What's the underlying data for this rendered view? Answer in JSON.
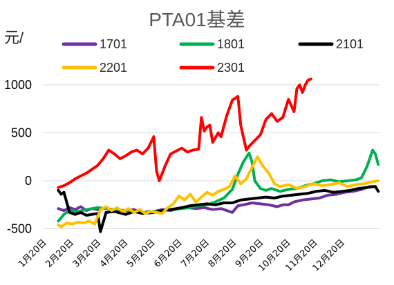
{
  "chart_data": {
    "type": "line",
    "title": "PTA01基差",
    "ylabel": "元/",
    "xlabel": "",
    "ylim": [
      -500,
      1100
    ],
    "yticks": [
      -500,
      0,
      500,
      1000
    ],
    "x_categories": [
      "1月20日",
      "2月20日",
      "3月20日",
      "4月20日",
      "5月20日",
      "6月20日",
      "7月20日",
      "8月20日",
      "9月20日",
      "10月20日",
      "11月20日",
      "12月20日"
    ],
    "grid": "horizontal",
    "legend_position": "top",
    "series": [
      {
        "name": "1701",
        "color": "#7030A0",
        "width": 4,
        "x": [
          0.6,
          0.8,
          1.0,
          1.2,
          1.4,
          1.6,
          1.8,
          2.0,
          2.3,
          2.6,
          3.0,
          3.3,
          3.6,
          3.8,
          4.0,
          4.3,
          4.6,
          4.9,
          5.2,
          5.5,
          5.8,
          6.1,
          6.4,
          6.8,
          7.0,
          7.2,
          7.5,
          7.8,
          8.1,
          8.4,
          8.6,
          8.8,
          9.0,
          9.3,
          9.6,
          9.9,
          10.2,
          10.5,
          10.8,
          11.1,
          11.4,
          11.7,
          11.9
        ],
        "y": [
          -290,
          -310,
          -280,
          -300,
          -270,
          -310,
          -290,
          -300,
          -280,
          -320,
          -310,
          -300,
          -340,
          -320,
          -320,
          -300,
          -310,
          -290,
          -280,
          -290,
          -280,
          -300,
          -290,
          -330,
          -260,
          -250,
          -230,
          -240,
          -250,
          -270,
          -250,
          -250,
          -220,
          -200,
          -190,
          -180,
          -150,
          -140,
          -120,
          -110,
          -90,
          -60,
          -60
        ]
      },
      {
        "name": "1801",
        "color": "#00B050",
        "width": 4,
        "x": [
          0.6,
          0.8,
          1.0,
          1.3,
          1.6,
          2.0,
          2.3,
          2.6,
          3.0,
          3.3,
          3.6,
          4.0,
          4.3,
          4.6,
          5.0,
          5.3,
          5.6,
          5.9,
          6.2,
          6.5,
          6.8,
          7.0,
          7.2,
          7.4,
          7.5,
          7.6,
          7.8,
          8.0,
          8.2,
          8.5,
          8.8,
          9.1,
          9.4,
          9.7,
          10.0,
          10.3,
          10.6,
          10.9,
          11.2,
          11.4,
          11.6,
          11.8,
          11.9,
          12.0
        ],
        "y": [
          -420,
          -350,
          -310,
          -320,
          -300,
          -280,
          -290,
          -300,
          -310,
          -320,
          -330,
          -320,
          -310,
          -300,
          -290,
          -280,
          -260,
          -250,
          -220,
          -180,
          -90,
          70,
          200,
          290,
          200,
          0,
          -80,
          -100,
          -80,
          -110,
          -90,
          -80,
          -50,
          -30,
          0,
          10,
          -10,
          0,
          10,
          30,
          150,
          320,
          280,
          170
        ]
      },
      {
        "name": "2101",
        "color": "#000000",
        "width": 4,
        "x": [
          0.6,
          0.7,
          0.8,
          1.0,
          1.2,
          1.4,
          1.6,
          1.8,
          2.0,
          2.1,
          2.3,
          2.6,
          3.0,
          3.3,
          3.6,
          4.0,
          4.3,
          4.6,
          5.0,
          5.3,
          5.6,
          5.9,
          6.2,
          6.5,
          6.8,
          7.1,
          7.4,
          7.7,
          8.0,
          8.3,
          8.6,
          8.9,
          9.2,
          9.5,
          9.8,
          10.1,
          10.4,
          10.7,
          11.0,
          11.3,
          11.6,
          11.9,
          12.0
        ],
        "y": [
          -100,
          -140,
          -120,
          -330,
          -350,
          -330,
          -360,
          -350,
          -340,
          -530,
          -330,
          -320,
          -350,
          -320,
          -340,
          -330,
          -310,
          -300,
          -280,
          -260,
          -250,
          -240,
          -250,
          -230,
          -230,
          -200,
          -190,
          -180,
          -170,
          -180,
          -160,
          -150,
          -140,
          -130,
          -110,
          -100,
          -120,
          -110,
          -100,
          -80,
          -70,
          -60,
          -110
        ]
      },
      {
        "name": "2201",
        "color": "#FFC000",
        "width": 4,
        "x": [
          0.6,
          0.7,
          0.9,
          1.1,
          1.3,
          1.5,
          1.7,
          1.9,
          2.1,
          2.3,
          2.5,
          2.7,
          2.9,
          3.1,
          3.3,
          3.5,
          3.7,
          3.9,
          4.1,
          4.3,
          4.5,
          4.7,
          4.9,
          5.1,
          5.3,
          5.5,
          5.7,
          5.9,
          6.1,
          6.3,
          6.5,
          6.7,
          6.9,
          7.1,
          7.3,
          7.5,
          7.7,
          7.9,
          8.1,
          8.3,
          8.5,
          8.8,
          9.1,
          9.4,
          9.7,
          10.0,
          10.3,
          10.6,
          10.9,
          11.2,
          11.5,
          11.8,
          12.0
        ],
        "y": [
          -460,
          -480,
          -440,
          -450,
          -430,
          -440,
          -420,
          -450,
          -300,
          -270,
          -310,
          -280,
          -320,
          -290,
          -330,
          -300,
          -340,
          -320,
          -330,
          -340,
          -280,
          -240,
          -160,
          -200,
          -140,
          -220,
          -170,
          -120,
          -150,
          -110,
          -90,
          -60,
          50,
          -30,
          20,
          140,
          250,
          150,
          80,
          -30,
          -60,
          -40,
          -80,
          -60,
          -30,
          -50,
          -40,
          -20,
          -60,
          -40,
          -30,
          -10,
          0
        ]
      },
      {
        "name": "2301",
        "color": "#FF0000",
        "width": 4,
        "x": [
          0.6,
          0.8,
          1.0,
          1.2,
          1.4,
          1.6,
          1.8,
          2.0,
          2.2,
          2.4,
          2.6,
          2.8,
          3.0,
          3.2,
          3.4,
          3.6,
          3.8,
          4.0,
          4.1,
          4.2,
          4.4,
          4.6,
          4.8,
          5.0,
          5.2,
          5.4,
          5.6,
          5.7,
          5.8,
          5.9,
          6.0,
          6.1,
          6.2,
          6.3,
          6.4,
          6.6,
          6.8,
          7.0,
          7.1,
          7.2,
          7.3,
          7.4,
          7.6,
          7.8,
          8.0,
          8.2,
          8.4,
          8.6,
          8.8,
          9.0,
          9.1,
          9.2,
          9.3,
          9.4,
          9.5,
          9.6
        ],
        "y": [
          -70,
          -50,
          -20,
          20,
          50,
          80,
          120,
          160,
          230,
          320,
          280,
          230,
          260,
          300,
          320,
          280,
          340,
          460,
          100,
          0,
          150,
          280,
          310,
          340,
          300,
          320,
          330,
          660,
          520,
          560,
          580,
          400,
          450,
          500,
          460,
          680,
          840,
          880,
          580,
          450,
          320,
          360,
          420,
          480,
          640,
          700,
          620,
          660,
          850,
          720,
          960,
          1000,
          920,
          1000,
          1050,
          1060
        ]
      }
    ]
  }
}
